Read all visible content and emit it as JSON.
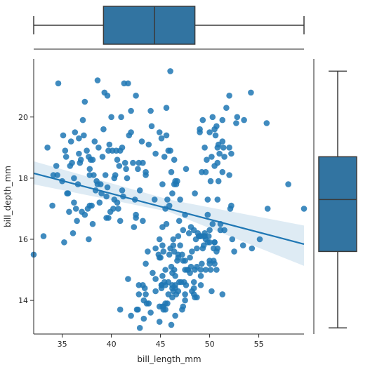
{
  "chart_data": {
    "type": "scatter",
    "xlabel": "bill_length_mm",
    "ylabel": "bill_depth_mm",
    "xlim": [
      32.1,
      59.6
    ],
    "ylim": [
      12.9,
      21.9
    ],
    "xticks": [
      35,
      40,
      45,
      50,
      55
    ],
    "yticks": [
      14,
      16,
      18,
      20
    ],
    "color": "#1f77b4",
    "points": [
      [
        36.7,
        19.3
      ],
      [
        39.2,
        19.6
      ],
      [
        40.3,
        18.0
      ],
      [
        38.9,
        17.8
      ],
      [
        37.8,
        18.1
      ],
      [
        34.6,
        21.1
      ],
      [
        41.1,
        17.6
      ],
      [
        38.7,
        19.0
      ],
      [
        42.5,
        20.7
      ],
      [
        34.4,
        18.4
      ],
      [
        46.0,
        21.5
      ],
      [
        37.8,
        18.3
      ],
      [
        38.6,
        21.2
      ],
      [
        35.9,
        19.2
      ],
      [
        36.6,
        17.8
      ],
      [
        39.5,
        17.4
      ],
      [
        40.6,
        18.6
      ],
      [
        37.7,
        18.7
      ],
      [
        36.4,
        17.0
      ],
      [
        41.4,
        18.5
      ],
      [
        35.0,
        17.9
      ],
      [
        39.5,
        16.7
      ],
      [
        40.9,
        18.9
      ],
      [
        42.0,
        20.2
      ],
      [
        37.8,
        17.1
      ],
      [
        39.6,
        17.7
      ],
      [
        40.1,
        18.9
      ],
      [
        35.7,
        16.9
      ],
      [
        41.3,
        21.1
      ],
      [
        37.6,
        17.0
      ],
      [
        33.5,
        19.0
      ],
      [
        35.3,
        18.9
      ],
      [
        42.7,
        18.3
      ],
      [
        44.1,
        19.7
      ],
      [
        39.7,
        18.9
      ],
      [
        36.2,
        17.2
      ],
      [
        45.8,
        18.9
      ],
      [
        38.2,
        18.1
      ],
      [
        41.1,
        19.0
      ],
      [
        32.1,
        15.5
      ],
      [
        37.3,
        16.8
      ],
      [
        34.1,
        18.1
      ],
      [
        40.2,
        17.0
      ],
      [
        43.2,
        18.5
      ],
      [
        35.5,
        17.5
      ],
      [
        38.5,
        17.9
      ],
      [
        39.8,
        19.1
      ],
      [
        36.8,
        18.5
      ],
      [
        40.7,
        17.0
      ],
      [
        37.2,
        19.4
      ],
      [
        35.1,
        19.4
      ],
      [
        42.9,
        17.6
      ],
      [
        34.5,
        18.1
      ],
      [
        44.5,
        18.8
      ],
      [
        33.1,
        16.1
      ],
      [
        39.0,
        17.5
      ],
      [
        41.6,
        18.0
      ],
      [
        36.0,
        18.5
      ],
      [
        38.1,
        16.5
      ],
      [
        37.0,
        16.9
      ],
      [
        41.5,
        18.3
      ],
      [
        39.6,
        20.7
      ],
      [
        40.8,
        18.4
      ],
      [
        37.9,
        18.6
      ],
      [
        36.5,
        16.6
      ],
      [
        42.2,
        18.5
      ],
      [
        34.0,
        17.1
      ],
      [
        43.1,
        19.2
      ],
      [
        38.8,
        17.2
      ],
      [
        40.5,
        18.9
      ],
      [
        36.9,
        18.6
      ],
      [
        41.8,
        19.4
      ],
      [
        35.6,
        17.5
      ],
      [
        39.1,
        18.7
      ],
      [
        37.5,
        18.9
      ],
      [
        44.0,
        20.2
      ],
      [
        38.0,
        17.1
      ],
      [
        40.0,
        20.0
      ],
      [
        35.2,
        15.9
      ],
      [
        42.0,
        19.5
      ],
      [
        36.3,
        19.5
      ],
      [
        39.4,
        18.1
      ],
      [
        43.5,
        18.2
      ],
      [
        37.3,
        20.5
      ],
      [
        45.6,
        20.3
      ],
      [
        38.3,
        19.2
      ],
      [
        41.0,
        20.0
      ],
      [
        40.4,
        18.1
      ],
      [
        36.1,
        16.2
      ],
      [
        39.3,
        20.8
      ],
      [
        41.7,
        21.1
      ],
      [
        38.4,
        17.6
      ],
      [
        37.7,
        16.0
      ],
      [
        42.8,
        18.5
      ],
      [
        35.4,
        18.7
      ],
      [
        40.6,
        17.2
      ],
      [
        44.9,
        19.5
      ],
      [
        38.6,
        17.8
      ],
      [
        36.7,
        18.8
      ],
      [
        41.2,
        17.4
      ],
      [
        39.9,
        16.9
      ],
      [
        43.8,
        19.1
      ],
      [
        37.1,
        19.9
      ],
      [
        40.3,
        17.3
      ],
      [
        35.8,
        18.4
      ],
      [
        42.3,
        16.4
      ],
      [
        38.1,
        18.6
      ],
      [
        45.1,
        19.3
      ],
      [
        36.2,
        18.0
      ],
      [
        39.7,
        16.7
      ],
      [
        46.5,
        17.9
      ],
      [
        50.0,
        19.5
      ],
      [
        51.3,
        19.2
      ],
      [
        45.4,
        18.7
      ],
      [
        52.7,
        19.8
      ],
      [
        45.2,
        17.8
      ],
      [
        46.1,
        18.2
      ],
      [
        51.3,
        18.2
      ],
      [
        46.0,
        18.9
      ],
      [
        51.3,
        19.9
      ],
      [
        46.6,
        17.8
      ],
      [
        51.7,
        20.3
      ],
      [
        47.0,
        17.3
      ],
      [
        52.0,
        18.1
      ],
      [
        45.9,
        17.1
      ],
      [
        50.5,
        19.6
      ],
      [
        50.3,
        20.0
      ],
      [
        58.0,
        17.8
      ],
      [
        46.4,
        18.6
      ],
      [
        49.2,
        18.2
      ],
      [
        42.4,
        17.3
      ],
      [
        48.5,
        17.5
      ],
      [
        43.2,
        16.6
      ],
      [
        50.6,
        19.4
      ],
      [
        46.7,
        17.9
      ],
      [
        52.0,
        19.0
      ],
      [
        50.5,
        18.4
      ],
      [
        49.5,
        19.0
      ],
      [
        46.4,
        17.8
      ],
      [
        52.8,
        20.0
      ],
      [
        40.9,
        16.6
      ],
      [
        54.2,
        20.8
      ],
      [
        42.5,
        16.7
      ],
      [
        51.0,
        18.8
      ],
      [
        49.7,
        18.6
      ],
      [
        47.5,
        16.8
      ],
      [
        47.6,
        18.3
      ],
      [
        52.0,
        20.7
      ],
      [
        46.9,
        16.6
      ],
      [
        53.5,
        19.9
      ],
      [
        49.0,
        19.5
      ],
      [
        46.2,
        17.5
      ],
      [
        50.9,
        19.1
      ],
      [
        45.5,
        17.0
      ],
      [
        50.9,
        17.9
      ],
      [
        50.8,
        18.5
      ],
      [
        50.1,
        17.9
      ],
      [
        49.0,
        19.6
      ],
      [
        51.5,
        18.7
      ],
      [
        49.8,
        17.3
      ],
      [
        48.1,
        16.4
      ],
      [
        51.4,
        19.0
      ],
      [
        45.7,
        17.3
      ],
      [
        50.7,
        19.7
      ],
      [
        42.5,
        16.8
      ],
      [
        52.2,
        18.8
      ],
      [
        45.6,
        19.4
      ],
      [
        49.3,
        19.9
      ],
      [
        55.8,
        19.8
      ],
      [
        43.5,
        18.1
      ],
      [
        49.6,
        18.2
      ],
      [
        50.8,
        19.0
      ],
      [
        50.2,
        18.7
      ],
      [
        46.1,
        13.2
      ],
      [
        50.0,
        16.3
      ],
      [
        48.7,
        14.1
      ],
      [
        50.0,
        15.2
      ],
      [
        47.6,
        14.5
      ],
      [
        46.5,
        13.5
      ],
      [
        45.4,
        14.6
      ],
      [
        46.7,
        15.3
      ],
      [
        43.3,
        13.4
      ],
      [
        46.8,
        15.4
      ],
      [
        40.9,
        13.7
      ],
      [
        49.0,
        16.1
      ],
      [
        45.5,
        13.7
      ],
      [
        48.4,
        14.6
      ],
      [
        45.8,
        14.6
      ],
      [
        49.3,
        15.7
      ],
      [
        42.0,
        13.5
      ],
      [
        49.2,
        15.2
      ],
      [
        46.2,
        14.5
      ],
      [
        48.7,
        15.1
      ],
      [
        50.2,
        14.3
      ],
      [
        45.1,
        14.5
      ],
      [
        46.5,
        14.5
      ],
      [
        46.3,
        15.8
      ],
      [
        42.9,
        13.1
      ],
      [
        46.1,
        15.1
      ],
      [
        44.5,
        14.3
      ],
      [
        47.8,
        15.0
      ],
      [
        48.2,
        14.3
      ],
      [
        50.0,
        15.3
      ],
      [
        47.3,
        15.3
      ],
      [
        42.8,
        14.2
      ],
      [
        45.1,
        14.5
      ],
      [
        59.6,
        17.0
      ],
      [
        49.1,
        14.8
      ],
      [
        48.4,
        16.3
      ],
      [
        42.6,
        13.7
      ],
      [
        44.4,
        17.3
      ],
      [
        44.0,
        13.6
      ],
      [
        48.7,
        15.7
      ],
      [
        42.7,
        13.7
      ],
      [
        49.6,
        16.0
      ],
      [
        45.3,
        13.7
      ],
      [
        49.6,
        15.0
      ],
      [
        50.5,
        15.9
      ],
      [
        43.6,
        13.9
      ],
      [
        45.5,
        13.9
      ],
      [
        50.5,
        15.9
      ],
      [
        44.9,
        13.3
      ],
      [
        45.2,
        15.8
      ],
      [
        46.6,
        14.2
      ],
      [
        48.5,
        14.1
      ],
      [
        45.1,
        14.4
      ],
      [
        50.1,
        15.0
      ],
      [
        46.5,
        14.4
      ],
      [
        45.0,
        15.4
      ],
      [
        43.8,
        13.9
      ],
      [
        45.5,
        15.0
      ],
      [
        43.2,
        14.5
      ],
      [
        50.4,
        15.3
      ],
      [
        45.3,
        13.8
      ],
      [
        46.2,
        14.9
      ],
      [
        45.7,
        13.9
      ],
      [
        54.3,
        15.7
      ],
      [
        45.8,
        14.2
      ],
      [
        49.8,
        16.8
      ],
      [
        46.2,
        14.4
      ],
      [
        49.5,
        16.2
      ],
      [
        43.5,
        14.2
      ],
      [
        50.7,
        15.0
      ],
      [
        47.7,
        15.0
      ],
      [
        46.4,
        15.6
      ],
      [
        48.2,
        15.6
      ],
      [
        46.5,
        14.8
      ],
      [
        46.4,
        15.0
      ],
      [
        48.6,
        16.0
      ],
      [
        47.5,
        14.2
      ],
      [
        51.1,
        16.3
      ],
      [
        45.2,
        13.8
      ],
      [
        45.2,
        16.4
      ],
      [
        49.1,
        14.5
      ],
      [
        52.5,
        15.6
      ],
      [
        47.4,
        14.6
      ],
      [
        50.0,
        15.9
      ],
      [
        44.9,
        13.8
      ],
      [
        50.8,
        17.3
      ],
      [
        43.4,
        14.4
      ],
      [
        51.3,
        14.2
      ],
      [
        47.5,
        14.0
      ],
      [
        52.1,
        17.0
      ],
      [
        47.5,
        15.0
      ],
      [
        52.2,
        17.1
      ],
      [
        45.5,
        14.5
      ],
      [
        49.5,
        16.1
      ],
      [
        44.5,
        14.7
      ],
      [
        50.8,
        15.7
      ],
      [
        49.4,
        15.8
      ],
      [
        46.9,
        14.6
      ],
      [
        48.4,
        14.4
      ],
      [
        51.1,
        16.5
      ],
      [
        48.5,
        15.0
      ],
      [
        55.9,
        17.0
      ],
      [
        47.2,
        15.5
      ],
      [
        49.1,
        15.0
      ],
      [
        47.3,
        13.8
      ],
      [
        46.8,
        16.1
      ],
      [
        41.7,
        14.7
      ],
      [
        53.4,
        15.8
      ],
      [
        43.3,
        14.0
      ],
      [
        48.1,
        15.1
      ],
      [
        50.5,
        15.2
      ],
      [
        49.8,
        15.9
      ],
      [
        43.5,
        15.2
      ],
      [
        51.5,
        16.3
      ],
      [
        46.2,
        14.1
      ],
      [
        55.1,
        16.0
      ],
      [
        44.5,
        15.7
      ],
      [
        48.8,
        16.2
      ],
      [
        47.2,
        13.7
      ],
      [
        46.8,
        14.3
      ],
      [
        50.4,
        15.7
      ],
      [
        45.2,
        14.8
      ],
      [
        49.9,
        16.1
      ],
      [
        48.4,
        14.2
      ],
      [
        45.9,
        15.5
      ],
      [
        47.3,
        16.3
      ],
      [
        46.0,
        15.7
      ],
      [
        44.8,
        15.5
      ],
      [
        47.1,
        14.6
      ],
      [
        46.3,
        16.0
      ],
      [
        45.3,
        15.6
      ],
      [
        50.7,
        15.6
      ],
      [
        49.1,
        16.1
      ],
      [
        44.2,
        14.9
      ],
      [
        48.0,
        15.4
      ],
      [
        46.8,
        15.5
      ],
      [
        47.0,
        15.8
      ],
      [
        47.5,
        15.3
      ],
      [
        52.3,
        16.0
      ],
      [
        45.6,
        16.5
      ],
      [
        44.9,
        16.0
      ],
      [
        48.9,
        16.1
      ],
      [
        46.3,
        14.3
      ],
      [
        47.9,
        16.2
      ],
      [
        42.8,
        14.5
      ],
      [
        50.3,
        16.5
      ],
      [
        44.9,
        15.4
      ],
      [
        49.4,
        16.1
      ],
      [
        43.7,
        15.6
      ],
      [
        48.0,
        14.9
      ]
    ],
    "regression": {
      "x0": 32.1,
      "y0": 18.16,
      "x1": 59.6,
      "y1": 15.84,
      "ci_left": [
        18.55,
        17.8
      ],
      "ci_mid": [
        17.3,
        16.9
      ],
      "ci_right": [
        16.45,
        15.13
      ]
    },
    "marginal_x_box": {
      "min": 32.1,
      "q1": 39.2,
      "median": 44.4,
      "q3": 48.5,
      "max": 59.6
    },
    "marginal_y_box": {
      "min": 13.1,
      "q1": 15.6,
      "median": 17.3,
      "q3": 18.7,
      "max": 21.5
    }
  }
}
